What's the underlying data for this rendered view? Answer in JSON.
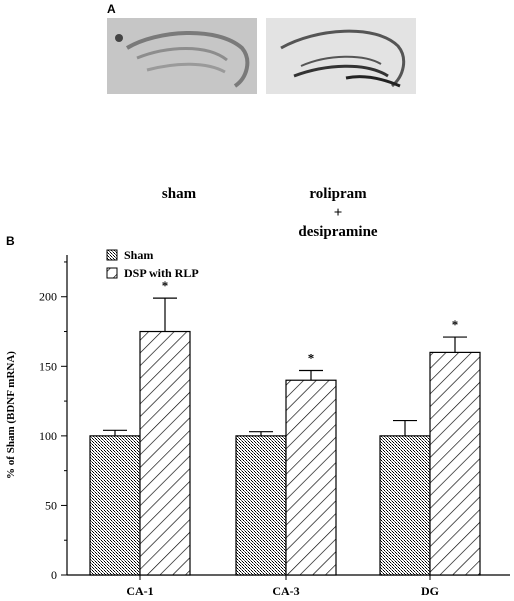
{
  "panel_a": {
    "label": "A",
    "images": [
      {
        "name": "sham-hippocampus-image"
      },
      {
        "name": "treated-hippocampus-image"
      }
    ],
    "condition_labels": {
      "left": "sham",
      "right_line1": "rolipram",
      "right_line2": "+",
      "right_line3": "desipramine"
    }
  },
  "panel_b": {
    "label": "B"
  },
  "chart_data": {
    "type": "bar",
    "categories": [
      "CA-1",
      "CA-3",
      "DG"
    ],
    "ylabel": "% of Sham (BDNF mRNA)",
    "xlabel": "",
    "ylim": [
      0,
      230
    ],
    "yticks": [
      0,
      50,
      100,
      150,
      200
    ],
    "legend_position": "top-left",
    "series": [
      {
        "name": "Sham",
        "pattern": "crosshatch",
        "values": [
          100,
          100,
          100
        ],
        "errors": [
          4,
          3,
          11
        ]
      },
      {
        "name": "DSP with RLP",
        "pattern": "diagonal",
        "values": [
          175,
          140,
          160
        ],
        "errors": [
          24,
          7,
          11
        ]
      }
    ],
    "significance": [
      "*",
      "*",
      "*"
    ]
  }
}
